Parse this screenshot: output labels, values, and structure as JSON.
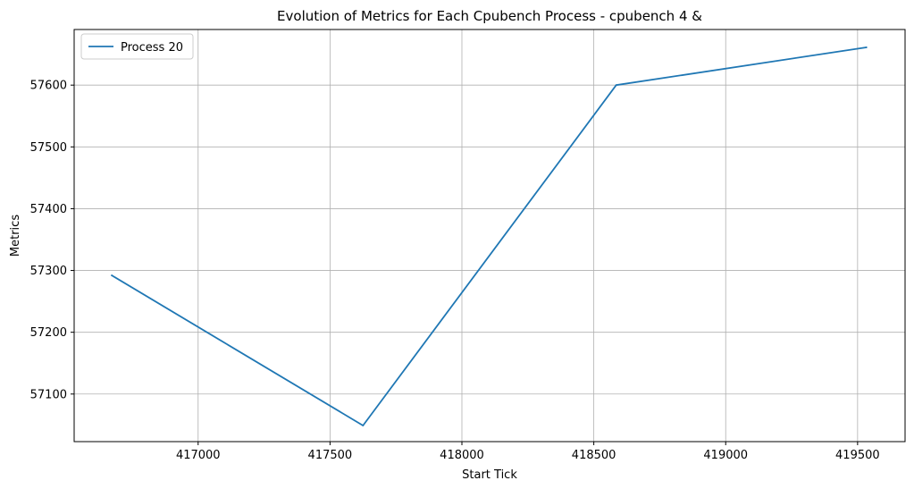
{
  "chart_data": {
    "type": "line",
    "title": "Evolution of Metrics for Each Cpubench Process - cpubench 4 &",
    "xlabel": "Start Tick",
    "ylabel": "Metrics",
    "xlim": [
      416530,
      419680
    ],
    "ylim": [
      57023,
      57690
    ],
    "x_ticks": [
      417000,
      417500,
      418000,
      418500,
      419000,
      419500
    ],
    "y_ticks": [
      57100,
      57200,
      57300,
      57400,
      57500,
      57600
    ],
    "grid": true,
    "legend_position": "top-left",
    "series": [
      {
        "name": "Process 20",
        "color": "#1f77b4",
        "x": [
          416673,
          417625,
          418585,
          419533
        ],
        "y": [
          57292,
          57049,
          57600,
          57661
        ]
      }
    ]
  }
}
